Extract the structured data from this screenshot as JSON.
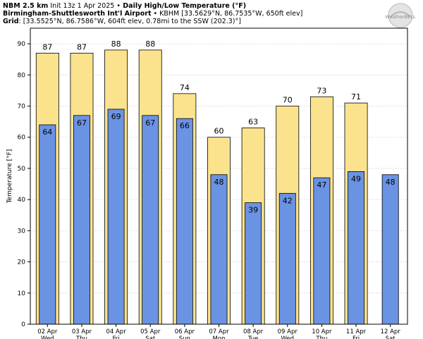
{
  "header": {
    "line1_model": "NBM 2.5 km",
    "line1_init": " Init 13z 1 Apr 2025 ",
    "line1_sep": "•",
    "line1_title": " Daily High/Low Temperature (°F)",
    "line2_station": "Birmingham-Shuttlesworth Int'l Airport",
    "line2_detail": " • KBHM [33.5629°N, 86.7535°W, 650ft elev]",
    "line3_grid": "Grid",
    "line3_detail": ": [33.5525°N, 86.7586°W, 604ft elev, 0.78mi to the SSW (202.3)°]"
  },
  "logo": {
    "text": "WeatherBELL",
    "icon": "weatherbell-logo"
  },
  "colors": {
    "high": "#fbe38e",
    "low": "#6b93e4",
    "bar_edge": "#000000",
    "grid": "#cccccc"
  },
  "chart_data": {
    "type": "bar",
    "title": "Daily High/Low Temperature (°F)",
    "ylabel": "Temperature [°F]",
    "ylim": [
      0,
      95
    ],
    "yticks": [
      0,
      10,
      20,
      30,
      40,
      50,
      60,
      70,
      80,
      90
    ],
    "grid": true,
    "categories": [
      {
        "date": "02 Apr",
        "day": "Wed"
      },
      {
        "date": "03 Apr",
        "day": "Thu"
      },
      {
        "date": "04 Apr",
        "day": "Fri"
      },
      {
        "date": "05 Apr",
        "day": "Sat"
      },
      {
        "date": "06 Apr",
        "day": "Sun"
      },
      {
        "date": "07 Apr",
        "day": "Mon"
      },
      {
        "date": "08 Apr",
        "day": "Tue"
      },
      {
        "date": "09 Apr",
        "day": "Wed"
      },
      {
        "date": "10 Apr",
        "day": "Thu"
      },
      {
        "date": "11 Apr",
        "day": "Fri"
      },
      {
        "date": "12 Apr",
        "day": "Sat"
      }
    ],
    "series": [
      {
        "name": "High",
        "values": [
          87,
          87,
          88,
          88,
          74,
          60,
          63,
          70,
          73,
          71,
          null
        ],
        "labels": [
          "87",
          "87",
          "88",
          "88",
          "74",
          "60",
          "63",
          "70",
          "73",
          "71",
          ""
        ]
      },
      {
        "name": "Low",
        "values": [
          64,
          67,
          69,
          67,
          66,
          48,
          39,
          42,
          47,
          49,
          48
        ],
        "labels": [
          "64",
          "67",
          "69",
          "67",
          "66",
          "48",
          "39",
          "42",
          "47",
          "49",
          "48"
        ]
      }
    ]
  }
}
